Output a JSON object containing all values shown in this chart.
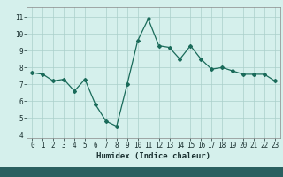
{
  "x": [
    0,
    1,
    2,
    3,
    4,
    5,
    6,
    7,
    8,
    9,
    10,
    11,
    12,
    13,
    14,
    15,
    16,
    17,
    18,
    19,
    20,
    21,
    22,
    23
  ],
  "y": [
    7.7,
    7.6,
    7.2,
    7.3,
    6.6,
    7.3,
    5.8,
    4.8,
    4.5,
    7.0,
    9.6,
    10.9,
    9.3,
    9.2,
    8.5,
    9.3,
    8.5,
    7.9,
    8.0,
    7.8,
    7.6,
    7.6,
    7.6,
    7.2
  ],
  "line_color": "#1a6b5a",
  "marker": "D",
  "markersize": 2.0,
  "linewidth": 0.9,
  "xlabel": "Humidex (Indice chaleur)",
  "xlabel_fontsize": 6.5,
  "ylim": [
    3.8,
    11.6
  ],
  "xlim": [
    -0.5,
    23.5
  ],
  "yticks": [
    4,
    5,
    6,
    7,
    8,
    9,
    10,
    11
  ],
  "xticks": [
    0,
    1,
    2,
    3,
    4,
    5,
    6,
    7,
    8,
    9,
    10,
    11,
    12,
    13,
    14,
    15,
    16,
    17,
    18,
    19,
    20,
    21,
    22,
    23
  ],
  "bg_color": "#d5f0ec",
  "grid_color": "#aacfca",
  "tick_fontsize": 5.5,
  "bottom_bar_color": "#2a6060",
  "bottom_bar_height": 0.055
}
